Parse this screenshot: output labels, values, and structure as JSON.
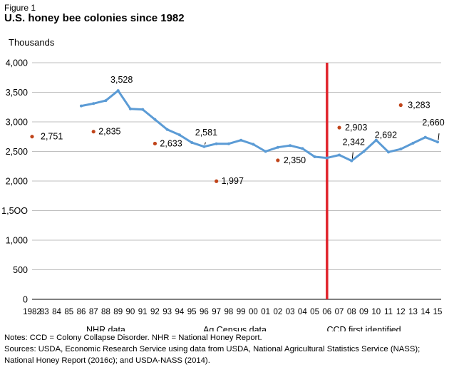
{
  "figure_label": "Figure 1",
  "title": "U.S. honey bee colonies since 1982",
  "notes": "Notes: CCD = Colony Collapse Disorder. NHR = National Honey Report.",
  "sources": "Sources: USDA, Economic Research Service using data from USDA, National Agricultural Statistics Service (NASS); National Honey Report (2016c); and USDA-NASS (2014).",
  "colors": {
    "line": "#5b9bd5",
    "dot": "#c0441a",
    "ccd_line": "#e0242c",
    "axis": "#000000"
  },
  "chart_data": {
    "type": "line",
    "title": "U.S. honey bee colonies since 1982",
    "ylabel": "Thousands",
    "xlabel": "",
    "ylim": [
      0,
      4000
    ],
    "yticks": [
      0,
      500,
      1000,
      1500,
      2000,
      2500,
      3000,
      3500,
      4000
    ],
    "ytick_labels": [
      "0",
      "500",
      "1,000",
      "1,5OO",
      "2,000",
      "2,500",
      "3,000",
      "3,500",
      "4,000"
    ],
    "x_years": [
      1982,
      1983,
      1984,
      1985,
      1986,
      1987,
      1988,
      1989,
      1990,
      1991,
      1992,
      1993,
      1994,
      1995,
      1996,
      1997,
      1998,
      1999,
      2000,
      2001,
      2002,
      2003,
      2004,
      2005,
      2006,
      2007,
      2008,
      2009,
      2010,
      2011,
      2012,
      2013,
      2014,
      2015
    ],
    "xtick_labels": [
      "1982",
      "83",
      "84",
      "85",
      "86",
      "87",
      "88",
      "89",
      "90",
      "91",
      "92",
      "93",
      "94",
      "95",
      "96",
      "97",
      "98",
      "99",
      "00",
      "01",
      "02",
      "03",
      "04",
      "05",
      "06",
      "07",
      "08",
      "09",
      "10",
      "11",
      "12",
      "13",
      "14",
      "15"
    ],
    "grid": "horizontal",
    "series": [
      {
        "x": [
          1986,
          1987,
          1988,
          1989,
          1990,
          1991,
          1992,
          1993,
          1994,
          1995,
          1996,
          1997,
          1998,
          1999,
          2000,
          2001,
          2002,
          2003,
          2004,
          2005,
          2006,
          2007,
          2008,
          2009,
          2010,
          2011,
          2012,
          2013,
          2014,
          2015
        ],
        "values": [
          3270,
          3310,
          3360,
          3528,
          3220,
          3210,
          3040,
          2870,
          2780,
          2650,
          2581,
          2630,
          2630,
          2690,
          2620,
          2500,
          2570,
          2600,
          2550,
          2410,
          2390,
          2440,
          2342,
          2500,
          2692,
          2490,
          2540,
          2640,
          2740,
          2660
        ]
      },
      {
        "type": "scatter",
        "x": [
          1982,
          1987,
          1992,
          1997,
          2002,
          2007,
          2012
        ],
        "values": [
          2751,
          2835,
          2633,
          1997,
          2350,
          2903,
          3283
        ]
      }
    ],
    "data_labels": [
      {
        "x": 1982,
        "y": 2751,
        "text": "2,751"
      },
      {
        "x": 1987,
        "y": 2835,
        "text": "2,835"
      },
      {
        "x": 1989,
        "y": 3528,
        "text": "3,528"
      },
      {
        "x": 1992,
        "y": 2633,
        "text": "2,633"
      },
      {
        "x": 1996,
        "y": 2581,
        "text": "2,581"
      },
      {
        "x": 1997,
        "y": 1997,
        "text": "1,997"
      },
      {
        "x": 2002,
        "y": 2350,
        "text": "2,350"
      },
      {
        "x": 2007,
        "y": 2903,
        "text": "2,903"
      },
      {
        "x": 2008,
        "y": 2342,
        "text": "2,342"
      },
      {
        "x": 2010,
        "y": 2692,
        "text": "2,692"
      },
      {
        "x": 2012,
        "y": 3283,
        "text": "3,283"
      },
      {
        "x": 2015,
        "y": 2660,
        "text": "2,660"
      }
    ],
    "reference_line": {
      "x": 2006,
      "color": "#e0242c"
    },
    "period_annotations": [
      {
        "text": "NHR data",
        "x": 1988
      },
      {
        "text": "Ag Census data",
        "x": 1998.5
      },
      {
        "text": "CCD first identified",
        "x": 2009
      }
    ]
  }
}
